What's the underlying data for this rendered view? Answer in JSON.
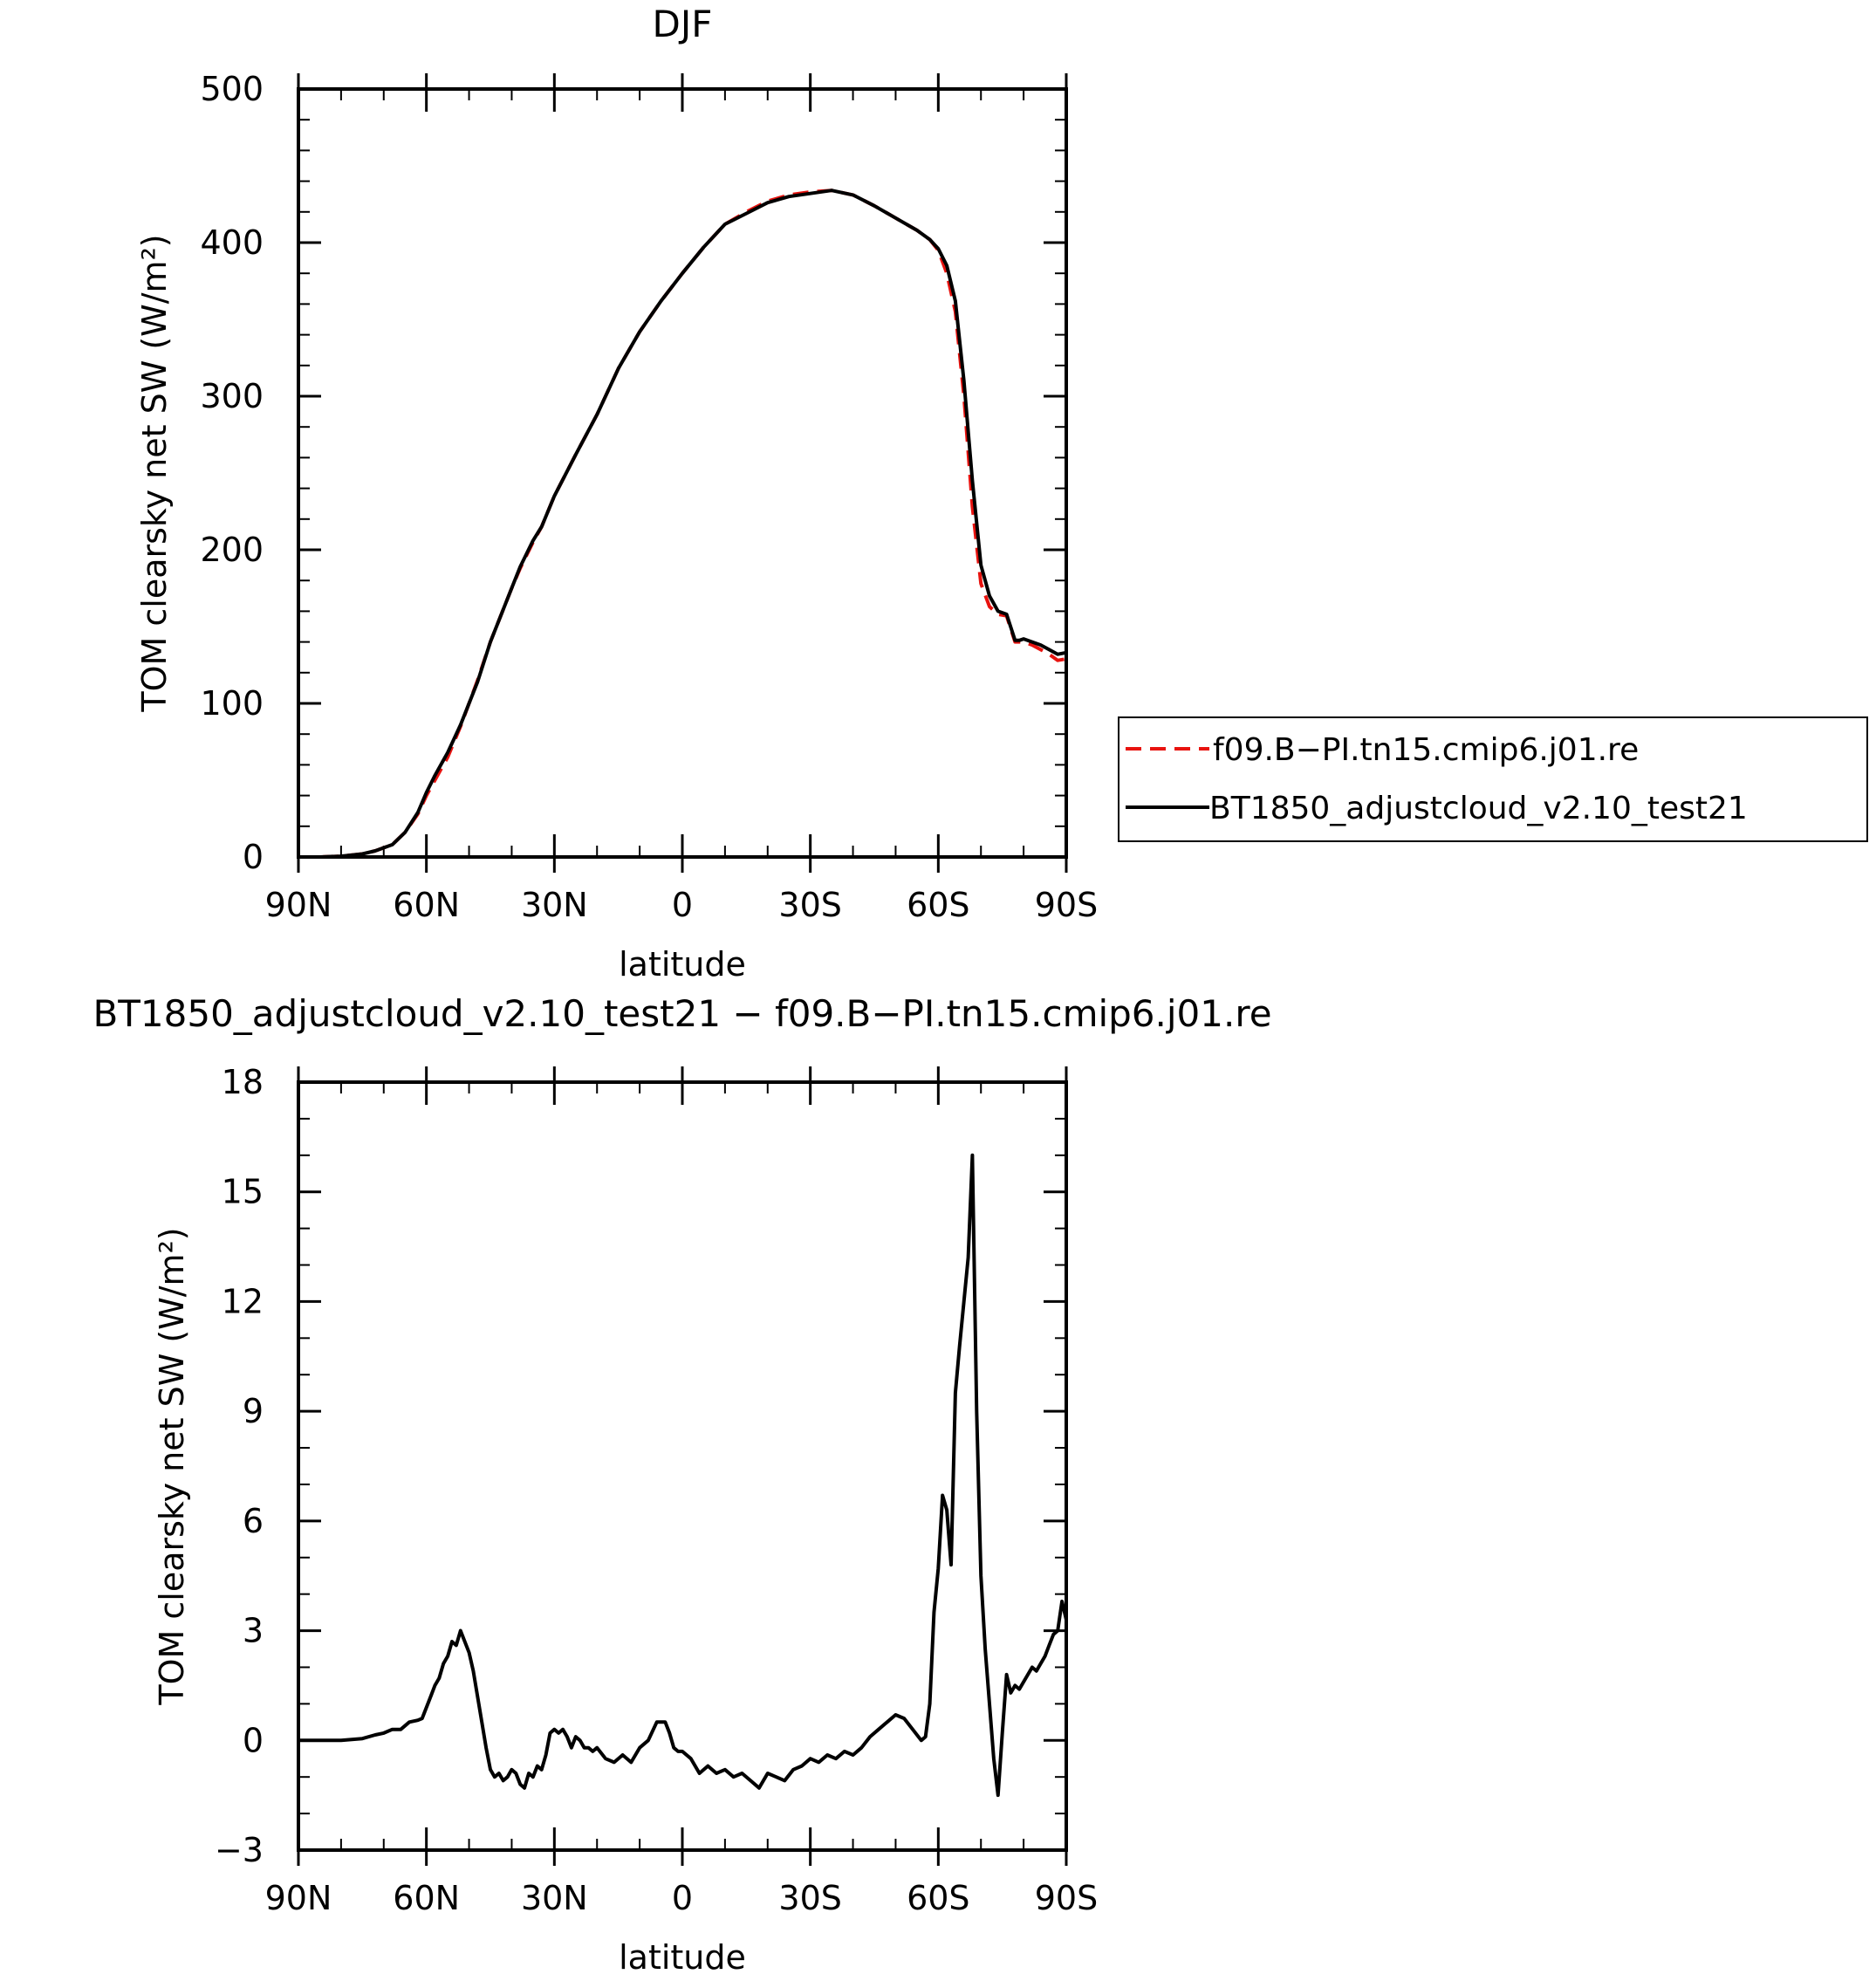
{
  "chart_data": [
    {
      "type": "line",
      "title": "DJF",
      "xlabel": "latitude",
      "ylabel": "TOM clearsky net SW (W/m²)",
      "xlim": [
        90,
        -90
      ],
      "ylim": [
        0,
        500
      ],
      "x_ticks": [
        {
          "value": 90,
          "label": "90N"
        },
        {
          "value": 60,
          "label": "60N"
        },
        {
          "value": 30,
          "label": "30N"
        },
        {
          "value": 0,
          "label": "0"
        },
        {
          "value": -30,
          "label": "30S"
        },
        {
          "value": -60,
          "label": "60S"
        },
        {
          "value": -90,
          "label": "90S"
        }
      ],
      "y_ticks": [
        0,
        100,
        200,
        300,
        400,
        500
      ],
      "legend": "right",
      "series": [
        {
          "name": "f09.B−PI.tn15.cmip6.j01.re",
          "color": "#e8130f",
          "dash": true,
          "x": [
            90,
            85,
            80,
            75,
            72,
            68,
            65,
            62,
            60,
            58,
            55,
            52,
            48,
            45,
            40,
            38,
            35,
            33,
            30,
            25,
            20,
            15,
            10,
            5,
            0,
            -5,
            -10,
            -15,
            -20,
            -25,
            -30,
            -35,
            -40,
            -45,
            -50,
            -55,
            -58,
            -60,
            -62,
            -64,
            -66,
            -68,
            -70,
            -72,
            -74,
            -76,
            -78,
            -79,
            -80,
            -82,
            -84,
            -86,
            -88,
            -90
          ],
          "y": [
            0,
            0,
            0.5,
            2,
            4,
            8,
            16,
            28,
            40,
            50,
            65,
            85,
            115,
            140,
            175,
            188,
            205,
            215,
            235,
            262,
            288,
            318,
            342,
            362,
            380,
            397,
            412,
            420,
            427,
            431,
            433,
            434,
            431,
            424,
            416,
            408,
            402,
            395,
            380,
            355,
            300,
            228,
            178,
            163,
            158,
            157,
            140,
            140,
            140,
            138,
            135,
            132,
            128,
            129
          ]
        },
        {
          "name": "BT1850_adjustcloud_v2.10_test21",
          "color": "#000000",
          "dash": false,
          "x": [
            90,
            85,
            80,
            75,
            72,
            68,
            65,
            62,
            60,
            58,
            55,
            52,
            48,
            45,
            40,
            38,
            35,
            33,
            30,
            25,
            20,
            15,
            10,
            5,
            0,
            -5,
            -10,
            -15,
            -20,
            -25,
            -30,
            -35,
            -40,
            -45,
            -50,
            -55,
            -58,
            -60,
            -62,
            -64,
            -66,
            -68,
            -70,
            -72,
            -74,
            -76,
            -78,
            -79,
            -80,
            -82,
            -84,
            -86,
            -88,
            -90
          ],
          "y": [
            0,
            0,
            0.5,
            2,
            4,
            8,
            16,
            29,
            42,
            53,
            68,
            86,
            114,
            140,
            175,
            189,
            206,
            215,
            235,
            262,
            288,
            318,
            342,
            362,
            380,
            397,
            412,
            419,
            426,
            430,
            432,
            434,
            431,
            424,
            416,
            408,
            402,
            396,
            385,
            362,
            310,
            245,
            190,
            170,
            160,
            158,
            141,
            141,
            142,
            140,
            138,
            135,
            132,
            133
          ]
        }
      ]
    },
    {
      "type": "line",
      "title": "BT1850_adjustcloud_v2.10_test21 − f09.B−PI.tn15.cmip6.j01.re",
      "xlabel": "latitude",
      "ylabel": "TOM clearsky net SW (W/m²)",
      "xlim": [
        90,
        -90
      ],
      "ylim": [
        -3,
        18
      ],
      "x_ticks": [
        {
          "value": 90,
          "label": "90N"
        },
        {
          "value": 60,
          "label": "60N"
        },
        {
          "value": 30,
          "label": "30N"
        },
        {
          "value": 0,
          "label": "0"
        },
        {
          "value": -30,
          "label": "30S"
        },
        {
          "value": -60,
          "label": "60S"
        },
        {
          "value": -90,
          "label": "90S"
        }
      ],
      "y_ticks": [
        -3,
        0,
        3,
        6,
        9,
        12,
        15,
        18
      ],
      "series": [
        {
          "color": "#000000",
          "x": [
            90,
            85,
            80,
            75,
            72,
            70,
            68,
            66,
            64,
            62,
            61,
            59,
            58,
            57,
            56,
            55,
            54,
            53,
            52,
            50,
            49,
            48,
            47,
            46,
            45,
            44,
            43,
            42,
            41,
            40,
            39,
            38,
            37,
            36,
            35,
            34,
            33,
            32,
            31,
            30,
            29,
            28,
            27,
            26,
            25,
            24,
            23,
            22,
            21,
            20,
            18,
            16,
            14,
            12,
            10,
            8,
            6,
            5,
            4,
            3,
            2,
            1,
            0,
            -2,
            -4,
            -6,
            -8,
            -10,
            -12,
            -14,
            -16,
            -18,
            -20,
            -22,
            -24,
            -26,
            -28,
            -30,
            -32,
            -34,
            -36,
            -38,
            -40,
            -42,
            -44,
            -46,
            -48,
            -50,
            -52,
            -54,
            -56,
            -57,
            -58,
            -59,
            -60,
            -61,
            -62,
            -63,
            -64,
            -65,
            -66,
            -67,
            -68,
            -69,
            -70,
            -71,
            -72,
            -73,
            -74,
            -75,
            -76,
            -77,
            -78,
            -79,
            -80,
            -81,
            -82,
            -83,
            -84,
            -85,
            -86,
            -87,
            -88,
            -89,
            -90
          ],
          "y": [
            0,
            0,
            0,
            0.05,
            0.15,
            0.2,
            0.3,
            0.3,
            0.5,
            0.55,
            0.6,
            1.2,
            1.5,
            1.7,
            2.1,
            2.3,
            2.7,
            2.6,
            3.0,
            2.4,
            1.9,
            1.2,
            0.5,
            -0.2,
            -0.8,
            -1.0,
            -0.9,
            -1.1,
            -1.0,
            -0.8,
            -0.9,
            -1.2,
            -1.3,
            -0.9,
            -1.0,
            -0.7,
            -0.8,
            -0.4,
            0.2,
            0.3,
            0.2,
            0.3,
            0.1,
            -0.2,
            0.1,
            0.0,
            -0.2,
            -0.2,
            -0.3,
            -0.2,
            -0.5,
            -0.6,
            -0.4,
            -0.6,
            -0.2,
            0.0,
            0.5,
            0.5,
            0.5,
            0.2,
            -0.2,
            -0.3,
            -0.3,
            -0.5,
            -0.9,
            -0.7,
            -0.9,
            -0.8,
            -1.0,
            -0.9,
            -1.1,
            -1.3,
            -0.9,
            -1.0,
            -1.1,
            -0.8,
            -0.7,
            -0.5,
            -0.6,
            -0.4,
            -0.5,
            -0.3,
            -0.4,
            -0.2,
            0.1,
            0.3,
            0.5,
            0.7,
            0.6,
            0.3,
            0.0,
            0.1,
            1.0,
            3.5,
            4.7,
            6.7,
            6.3,
            4.8,
            9.5,
            10.8,
            12.0,
            13.2,
            16.0,
            9.0,
            4.5,
            2.5,
            1.0,
            -0.5,
            -1.5,
            0.2,
            1.8,
            1.3,
            1.5,
            1.4,
            1.6,
            1.8,
            2.0,
            1.9,
            2.1,
            2.3,
            2.6,
            2.9,
            3.0,
            3.8,
            3.3
          ]
        }
      ]
    }
  ]
}
